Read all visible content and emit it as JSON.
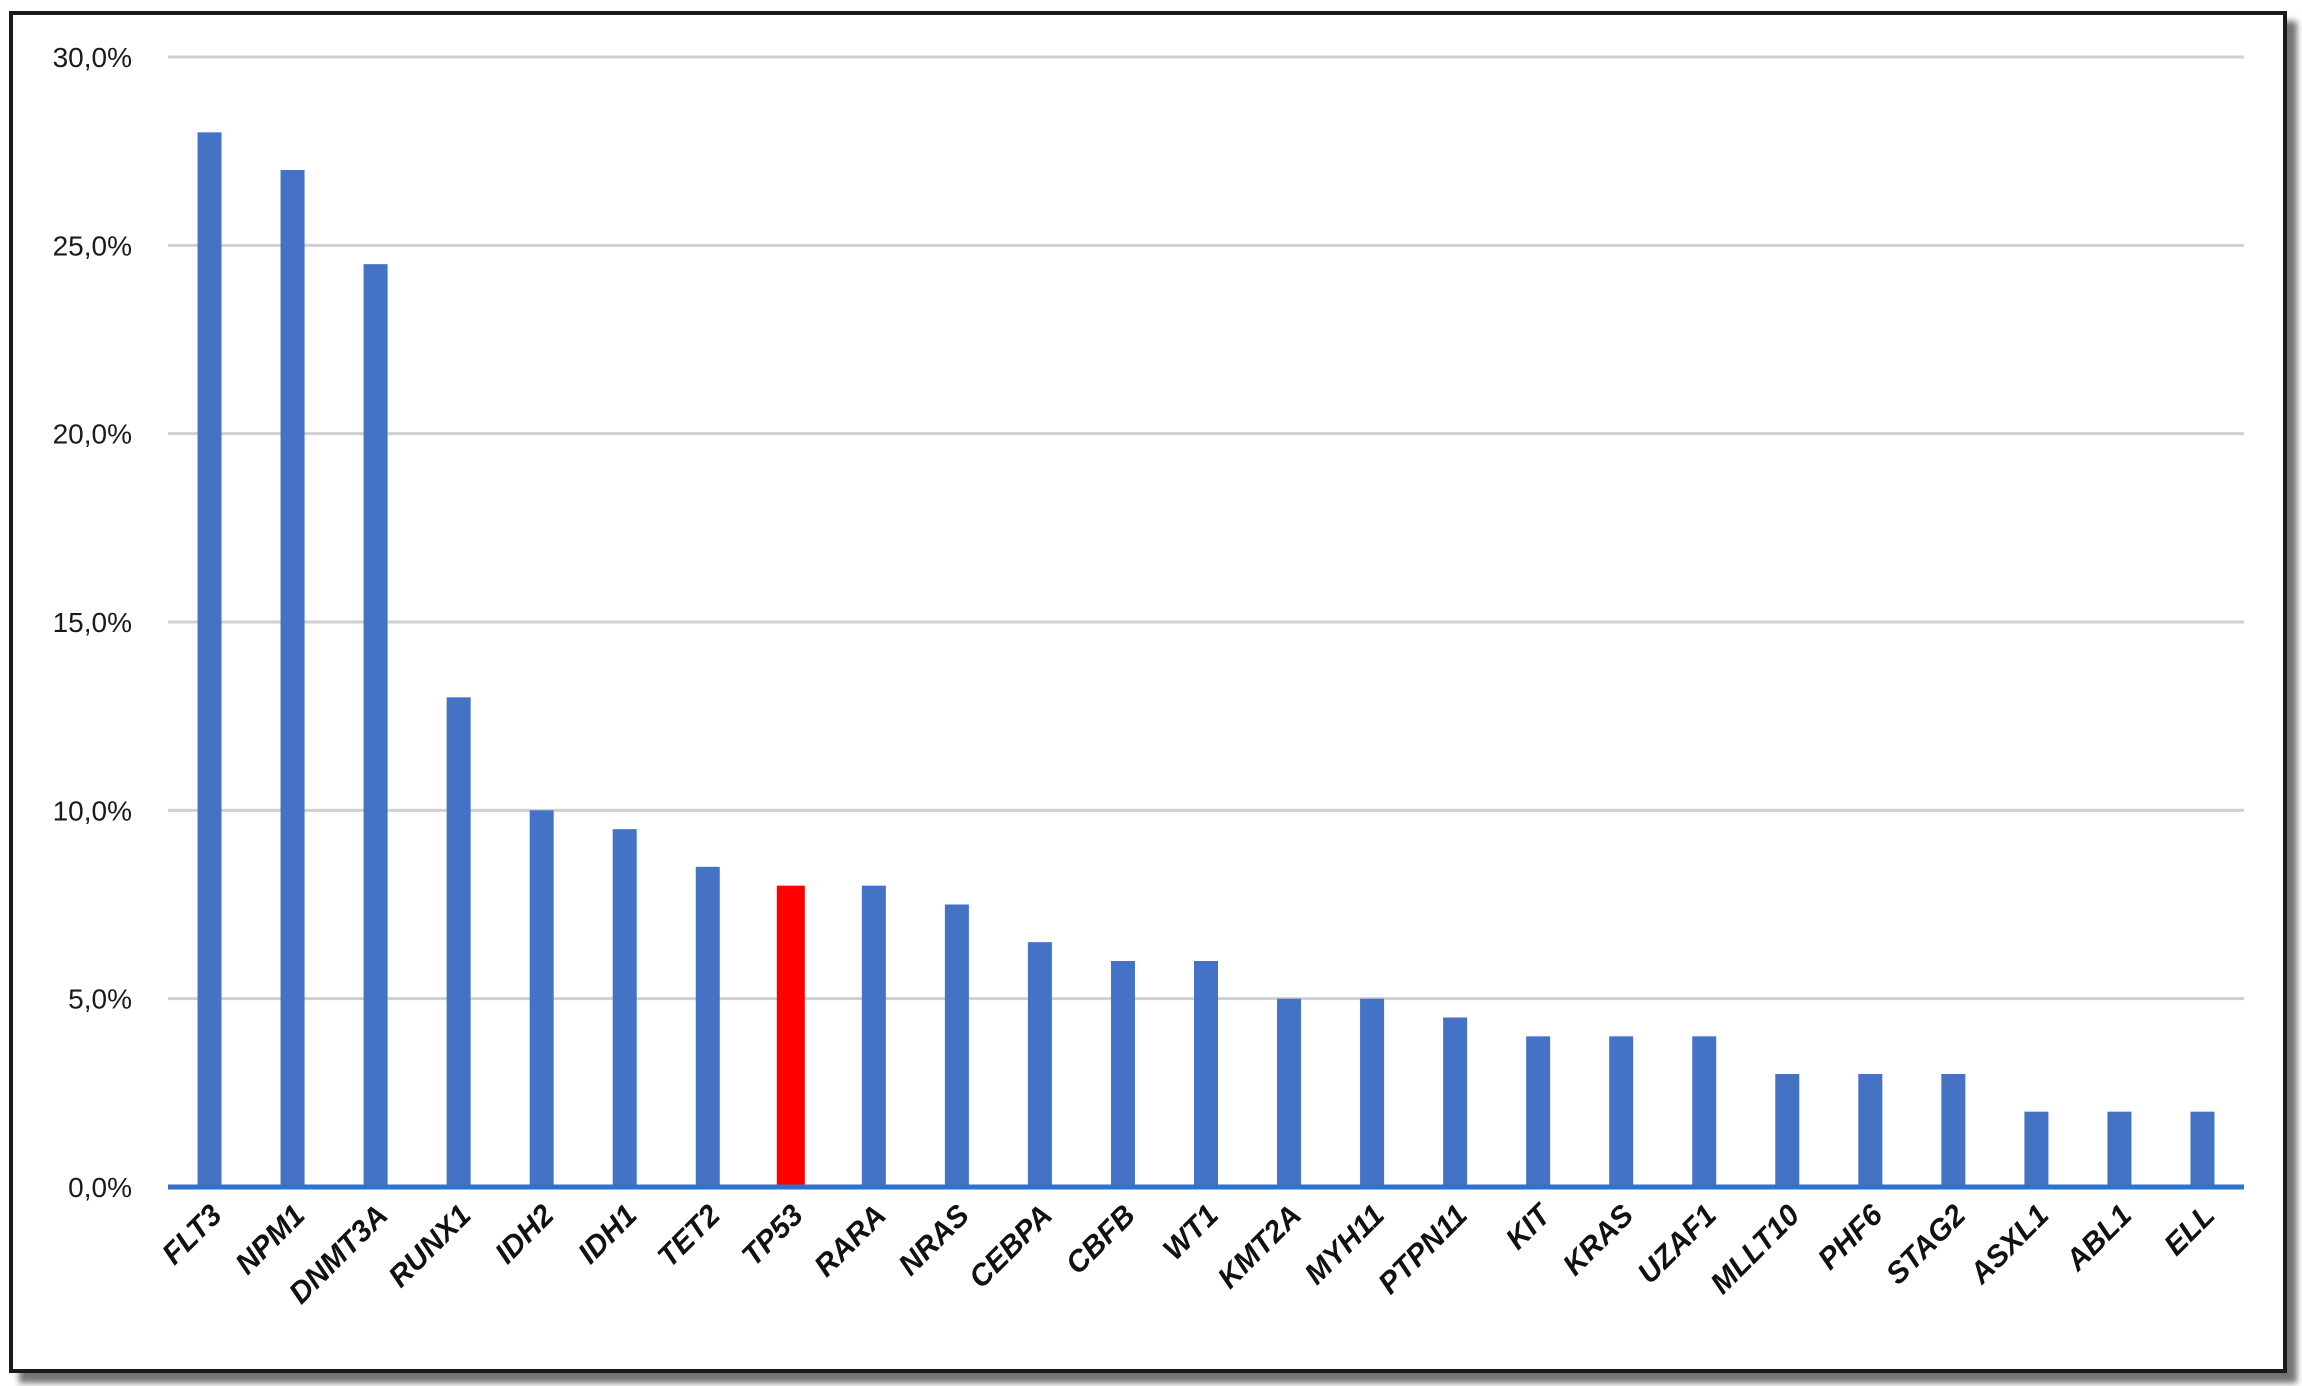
{
  "chart_data": {
    "type": "bar",
    "categories": [
      "FLT3",
      "NPM1",
      "DNMT3A",
      "RUNX1",
      "IDH2",
      "IDH1",
      "TET2",
      "TP53",
      "RARA",
      "NRAS",
      "CEBPA",
      "CBFB",
      "WT1",
      "KMT2A",
      "MYH11",
      "PTPN11",
      "KIT",
      "KRAS",
      "UZAF1",
      "MLLT10",
      "PHF6",
      "STAG2",
      "ASXL1",
      "ABL1",
      "ELL"
    ],
    "values": [
      28.0,
      27.0,
      24.5,
      13.0,
      10.0,
      9.5,
      8.5,
      8.0,
      8.0,
      7.5,
      6.5,
      6.0,
      6.0,
      5.0,
      5.0,
      4.5,
      4.0,
      4.0,
      4.0,
      3.0,
      3.0,
      3.0,
      2.0,
      2.0,
      2.0
    ],
    "highlight_category": "TP53",
    "colors": {
      "bar": "#4472c4",
      "highlight": "#ff0000",
      "axis": "#2f72c9",
      "grid": "#d0d0d0"
    },
    "ylim": [
      0,
      30
    ],
    "yticks": [
      0,
      5,
      10,
      15,
      20,
      25,
      30
    ],
    "ytick_labels": [
      "0,0%",
      "5,0%",
      "10,0%",
      "15,0%",
      "20,0%",
      "25,0%",
      "30,0%"
    ],
    "title": "",
    "xlabel": "",
    "ylabel": "",
    "grid": true,
    "legend": "none"
  }
}
